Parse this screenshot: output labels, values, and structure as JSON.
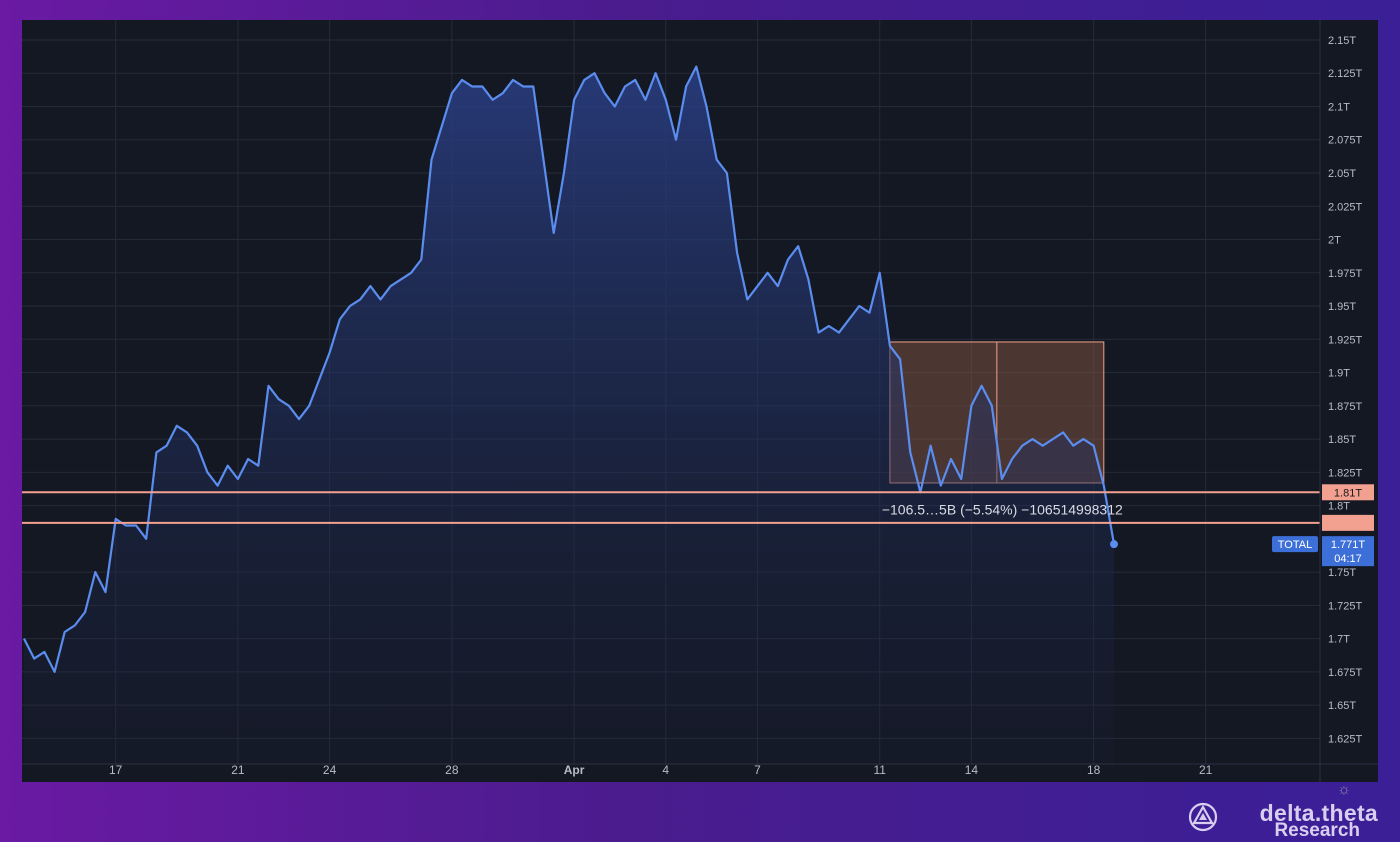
{
  "chart_data": {
    "type": "area",
    "series": [
      {
        "name": "TOTAL",
        "points": [
          [
            "14-1",
            1.7
          ],
          [
            "14-2",
            1.685
          ],
          [
            "14-3",
            1.69
          ],
          [
            "15-1",
            1.675
          ],
          [
            "15-2",
            1.705
          ],
          [
            "15-3",
            1.71
          ],
          [
            "16-1",
            1.72
          ],
          [
            "16-2",
            1.75
          ],
          [
            "16-3",
            1.735
          ],
          [
            "17-1",
            1.79
          ],
          [
            "17-2",
            1.785
          ],
          [
            "17-3",
            1.785
          ],
          [
            "18-1",
            1.775
          ],
          [
            "18-2",
            1.84
          ],
          [
            "18-3",
            1.845
          ],
          [
            "19-1",
            1.86
          ],
          [
            "19-2",
            1.855
          ],
          [
            "19-3",
            1.845
          ],
          [
            "20-1",
            1.825
          ],
          [
            "20-2",
            1.815
          ],
          [
            "20-3",
            1.83
          ],
          [
            "21-1",
            1.82
          ],
          [
            "21-2",
            1.835
          ],
          [
            "21-3",
            1.83
          ],
          [
            "22-1",
            1.89
          ],
          [
            "22-2",
            1.88
          ],
          [
            "22-3",
            1.875
          ],
          [
            "23-1",
            1.865
          ],
          [
            "23-2",
            1.875
          ],
          [
            "23-3",
            1.895
          ],
          [
            "24-1",
            1.915
          ],
          [
            "24-2",
            1.94
          ],
          [
            "24-3",
            1.95
          ],
          [
            "25-1",
            1.955
          ],
          [
            "25-2",
            1.965
          ],
          [
            "25-3",
            1.955
          ],
          [
            "26-1",
            1.965
          ],
          [
            "26-2",
            1.97
          ],
          [
            "26-3",
            1.975
          ],
          [
            "27-1",
            1.985
          ],
          [
            "27-2",
            2.06
          ],
          [
            "27-3",
            2.085
          ],
          [
            "28-1",
            2.11
          ],
          [
            "28-2",
            2.12
          ],
          [
            "28-3",
            2.115
          ],
          [
            "29-1",
            2.115
          ],
          [
            "29-2",
            2.105
          ],
          [
            "29-3",
            2.11
          ],
          [
            "30-1",
            2.12
          ],
          [
            "30-2",
            2.115
          ],
          [
            "30-3",
            2.115
          ],
          [
            "31-1",
            2.06
          ],
          [
            "31-2",
            2.005
          ],
          [
            "31-3",
            2.05
          ],
          [
            "Apr1-1",
            2.105
          ],
          [
            "Apr1-2",
            2.12
          ],
          [
            "Apr1-3",
            2.125
          ],
          [
            "Apr2-1",
            2.11
          ],
          [
            "Apr2-2",
            2.1
          ],
          [
            "Apr2-3",
            2.115
          ],
          [
            "Apr3-1",
            2.12
          ],
          [
            "Apr3-2",
            2.105
          ],
          [
            "Apr3-3",
            2.125
          ],
          [
            "Apr4-1",
            2.105
          ],
          [
            "Apr4-2",
            2.075
          ],
          [
            "Apr4-3",
            2.115
          ],
          [
            "Apr5-1",
            2.13
          ],
          [
            "Apr5-2",
            2.1
          ],
          [
            "Apr5-3",
            2.06
          ],
          [
            "Apr6-1",
            2.05
          ],
          [
            "Apr6-2",
            1.99
          ],
          [
            "Apr6-3",
            1.955
          ],
          [
            "Apr7-1",
            1.965
          ],
          [
            "Apr7-2",
            1.975
          ],
          [
            "Apr7-3",
            1.965
          ],
          [
            "Apr8-1",
            1.985
          ],
          [
            "Apr8-2",
            1.995
          ],
          [
            "Apr8-3",
            1.97
          ],
          [
            "Apr9-1",
            1.93
          ],
          [
            "Apr9-2",
            1.935
          ],
          [
            "Apr9-3",
            1.93
          ],
          [
            "Apr10-1",
            1.94
          ],
          [
            "Apr10-2",
            1.95
          ],
          [
            "Apr10-3",
            1.945
          ],
          [
            "Apr11-1",
            1.975
          ],
          [
            "Apr11-2",
            1.92
          ],
          [
            "Apr11-3",
            1.91
          ],
          [
            "Apr12-1",
            1.84
          ],
          [
            "Apr12-2",
            1.81
          ],
          [
            "Apr12-3",
            1.845
          ],
          [
            "Apr13-1",
            1.815
          ],
          [
            "Apr13-2",
            1.835
          ],
          [
            "Apr13-3",
            1.82
          ],
          [
            "Apr14-1",
            1.875
          ],
          [
            "Apr14-2",
            1.89
          ],
          [
            "Apr14-3",
            1.875
          ],
          [
            "Apr15-1",
            1.82
          ],
          [
            "Apr15-2",
            1.835
          ],
          [
            "Apr15-3",
            1.845
          ],
          [
            "Apr16-1",
            1.85
          ],
          [
            "Apr16-2",
            1.845
          ],
          [
            "Apr16-3",
            1.85
          ],
          [
            "Apr17-1",
            1.855
          ],
          [
            "Apr17-2",
            1.845
          ],
          [
            "Apr17-3",
            1.85
          ],
          [
            "Apr18-1",
            1.845
          ],
          [
            "Apr18-2",
            1.815
          ],
          [
            "Apr18-3",
            1.771
          ]
        ]
      }
    ],
    "y_ticks": [
      "1.625T",
      "1.65T",
      "1.675T",
      "1.7T",
      "1.725T",
      "1.75T",
      "1.771T",
      "1.8T",
      "1.81T",
      "1.825T",
      "1.85T",
      "1.875T",
      "1.9T",
      "1.925T",
      "1.95T",
      "1.975T",
      "2T",
      "2.025T",
      "2.05T",
      "2.075T",
      "2.1T",
      "2.125T",
      "2.15T"
    ],
    "y_tick_values": [
      1.625,
      1.65,
      1.675,
      1.7,
      1.725,
      1.75,
      1.771,
      1.8,
      1.81,
      1.825,
      1.85,
      1.875,
      1.9,
      1.925,
      1.95,
      1.975,
      2.0,
      2.025,
      2.05,
      2.075,
      2.1,
      2.125,
      2.15
    ],
    "x_ticks": [
      "17",
      "21",
      "24",
      "28",
      "Apr",
      "4",
      "7",
      "11",
      "14",
      "18",
      "21"
    ],
    "x_tick_keys": [
      "17-1",
      "21-1",
      "24-1",
      "28-1",
      "Apr1-1",
      "Apr4-1",
      "Apr7-1",
      "Apr11-1",
      "Apr14-1",
      "Apr18-1",
      "Apr21-1"
    ],
    "ylim": [
      1.605,
      2.165
    ],
    "horizontal_lines": [
      {
        "value": 1.81,
        "label": "1.81T",
        "color": "#f2a08f"
      },
      {
        "value": 1.787,
        "label": "",
        "color": "#f2a08f"
      }
    ],
    "measure_box": {
      "x_start": "Apr11-2",
      "x_end": "Apr18-2",
      "y_top": 1.923,
      "y_bottom": 1.817,
      "label": "−106.5…5B (−5.54%) −106514998312"
    },
    "last_price": {
      "label": "TOTAL",
      "value": "1.771T",
      "countdown": "04:17"
    },
    "colors": {
      "line": "#5b8def",
      "fill_top": "#2a3f86",
      "grid": "#262b38",
      "hline": "#f2a08f",
      "box": "#7a5040",
      "badge": "#3d6fd9"
    },
    "grid": true
  },
  "brand": {
    "name": "delta.theta",
    "sub": "Research",
    "logo": "delta-theta-logo-icon"
  },
  "settings_icon": "gear-icon"
}
